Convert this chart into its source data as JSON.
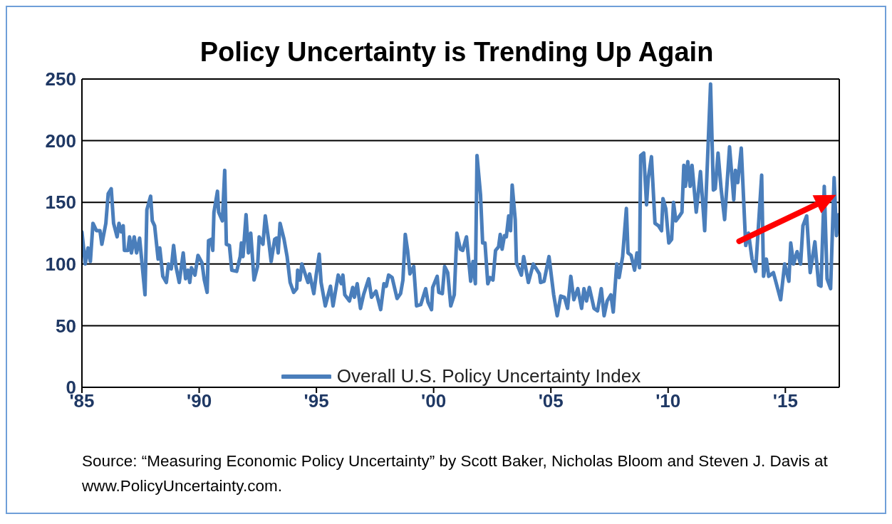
{
  "chart_data": {
    "type": "line",
    "title": "Policy Uncertainty is Trending Up Again",
    "annotations": [
      "Source: “Measuring Economic Policy Uncertainty” by Scott Baker, Nicholas Bloom and Steven J. Davis at www.PolicyUncertainty.com."
    ],
    "xlim": [
      1985,
      2017.3
    ],
    "xticks": [
      {
        "value": 1985,
        "label": "'85"
      },
      {
        "value": 1990,
        "label": "'90"
      },
      {
        "value": 1995,
        "label": "'95"
      },
      {
        "value": 2000,
        "label": "'00"
      },
      {
        "value": 2005,
        "label": "'05"
      },
      {
        "value": 2010,
        "label": "'10"
      },
      {
        "value": 2015,
        "label": "'15"
      }
    ],
    "ylim": [
      0,
      250
    ],
    "yticks": [
      0,
      50,
      100,
      150,
      200,
      250
    ],
    "grid": "y",
    "legend": "bottom",
    "series": [
      {
        "name": "Overall U.S. Policy Uncertainty Index",
        "color": "#4a7ebb",
        "x": [
          1985.0,
          1985.14,
          1985.26,
          1985.36,
          1985.47,
          1985.62,
          1985.77,
          1985.85,
          1986.02,
          1986.12,
          1986.25,
          1986.35,
          1986.5,
          1986.58,
          1986.68,
          1986.76,
          1986.81,
          1986.96,
          1987.03,
          1987.11,
          1987.23,
          1987.33,
          1987.46,
          1987.69,
          1987.77,
          1987.93,
          1988.0,
          1988.1,
          1988.25,
          1988.32,
          1988.45,
          1988.6,
          1988.69,
          1988.81,
          1988.91,
          1989.01,
          1989.15,
          1989.32,
          1989.42,
          1989.52,
          1989.6,
          1989.67,
          1989.82,
          1989.95,
          1990.12,
          1990.22,
          1990.34,
          1990.4,
          1990.51,
          1990.58,
          1990.63,
          1990.78,
          1990.83,
          1990.99,
          1991.09,
          1991.16,
          1991.29,
          1991.39,
          1991.6,
          1991.75,
          1991.8,
          1991.87,
          1992.0,
          1992.1,
          1992.2,
          1992.34,
          1992.49,
          1992.56,
          1992.72,
          1992.82,
          1992.97,
          1993.07,
          1993.22,
          1993.3,
          1993.37,
          1993.45,
          1993.62,
          1993.75,
          1993.88,
          1994.03,
          1994.16,
          1994.2,
          1994.3,
          1994.38,
          1994.64,
          1994.71,
          1994.89,
          1994.99,
          1995.12,
          1995.2,
          1995.38,
          1995.6,
          1995.71,
          1995.93,
          1996.06,
          1996.13,
          1996.21,
          1996.41,
          1996.55,
          1996.62,
          1996.74,
          1996.88,
          1997.01,
          1997.23,
          1997.35,
          1997.54,
          1997.74,
          1997.88,
          1997.98,
          1998.08,
          1998.23,
          1998.44,
          1998.59,
          1998.69,
          1998.79,
          1998.89,
          1998.99,
          1999.15,
          1999.27,
          1999.45,
          1999.66,
          1999.76,
          1999.91,
          1999.96,
          2000.15,
          2000.22,
          2000.37,
          2000.47,
          2000.6,
          2000.73,
          2000.88,
          2000.99,
          2001.14,
          2001.24,
          2001.4,
          2001.58,
          2001.68,
          2001.78,
          2001.85,
          2002.0,
          2002.09,
          2002.19,
          2002.31,
          2002.41,
          2002.53,
          2002.64,
          2002.77,
          2002.84,
          2002.92,
          2003.02,
          2003.1,
          2003.2,
          2003.28,
          2003.35,
          2003.48,
          2003.53,
          2003.74,
          2003.84,
          2004.04,
          2004.25,
          2004.51,
          2004.56,
          2004.71,
          2004.92,
          2005.12,
          2005.27,
          2005.42,
          2005.58,
          2005.71,
          2005.85,
          2005.98,
          2006.15,
          2006.31,
          2006.41,
          2006.52,
          2006.64,
          2006.84,
          2006.99,
          2007.15,
          2007.27,
          2007.4,
          2007.56,
          2007.66,
          2007.81,
          2007.91,
          2008.06,
          2008.22,
          2008.29,
          2008.42,
          2008.57,
          2008.67,
          2008.78,
          2008.83,
          2008.96,
          2009.08,
          2009.15,
          2009.29,
          2009.44,
          2009.59,
          2009.72,
          2009.78,
          2009.9,
          2010.03,
          2010.15,
          2010.23,
          2010.33,
          2010.49,
          2010.59,
          2010.67,
          2010.74,
          2010.84,
          2010.94,
          2011.02,
          2011.2,
          2011.38,
          2011.56,
          2011.81,
          2011.93,
          2012.01,
          2012.13,
          2012.26,
          2012.41,
          2012.62,
          2012.8,
          2012.87,
          2012.97,
          2013.12,
          2013.31,
          2013.43,
          2013.58,
          2013.73,
          2013.99,
          2014.07,
          2014.19,
          2014.29,
          2014.49,
          2014.8,
          2014.97,
          2015.15,
          2015.23,
          2015.35,
          2015.5,
          2015.65,
          2015.75,
          2015.91,
          2016.06,
          2016.26,
          2016.42,
          2016.52,
          2016.66,
          2016.78,
          2016.93,
          2017.08,
          2017.18,
          2017.28
        ],
        "values": [
          126,
          100,
          113,
          102,
          133,
          127,
          127,
          116,
          133,
          157,
          161,
          133,
          122,
          133,
          126,
          131,
          111,
          111,
          122,
          109,
          122,
          109,
          121,
          75,
          144,
          155,
          135,
          131,
          104,
          113,
          90,
          85,
          100,
          96,
          115,
          98,
          85,
          109,
          88,
          95,
          85,
          97,
          91,
          107,
          101,
          87,
          77,
          119,
          120,
          111,
          142,
          159,
          142,
          135,
          176,
          116,
          115,
          95,
          94,
          106,
          117,
          106,
          140,
          109,
          125,
          87,
          98,
          122,
          116,
          139,
          118,
          102,
          120,
          121,
          109,
          133,
          120,
          106,
          85,
          77,
          80,
          95,
          87,
          100,
          85,
          92,
          76,
          91,
          108,
          85,
          66,
          82,
          66,
          91,
          84,
          91,
          75,
          70,
          81,
          73,
          84,
          64,
          75,
          88,
          73,
          78,
          63,
          84,
          82,
          91,
          89,
          72,
          76,
          87,
          124,
          111,
          92,
          98,
          66,
          67,
          80,
          69,
          63,
          81,
          90,
          77,
          76,
          98,
          93,
          66,
          75,
          125,
          112,
          111,
          122,
          86,
          102,
          84,
          188,
          156,
          117,
          117,
          84,
          89,
          87,
          111,
          114,
          124,
          112,
          123,
          122,
          139,
          127,
          164,
          136,
          101,
          91,
          106,
          85,
          100,
          92,
          85,
          86,
          106,
          75,
          58,
          74,
          73,
          64,
          90,
          71,
          80,
          64,
          80,
          70,
          81,
          64,
          62,
          80,
          58,
          70,
          75,
          61,
          100,
          89,
          106,
          145,
          109,
          107,
          95,
          109,
          97,
          188,
          190,
          148,
          169,
          187,
          133,
          131,
          127,
          153,
          145,
          117,
          120,
          150,
          135,
          139,
          142,
          180,
          163,
          183,
          163,
          180,
          142,
          175,
          127,
          246,
          160,
          161,
          190,
          161,
          136,
          195,
          152,
          176,
          166,
          194,
          115,
          125,
          104,
          94,
          172,
          90,
          104,
          90,
          93,
          71,
          100,
          86,
          117,
          100,
          110,
          100,
          131,
          139,
          93,
          118,
          83,
          82,
          163,
          88,
          80,
          170,
          123,
          140
        ]
      }
    ]
  }
}
